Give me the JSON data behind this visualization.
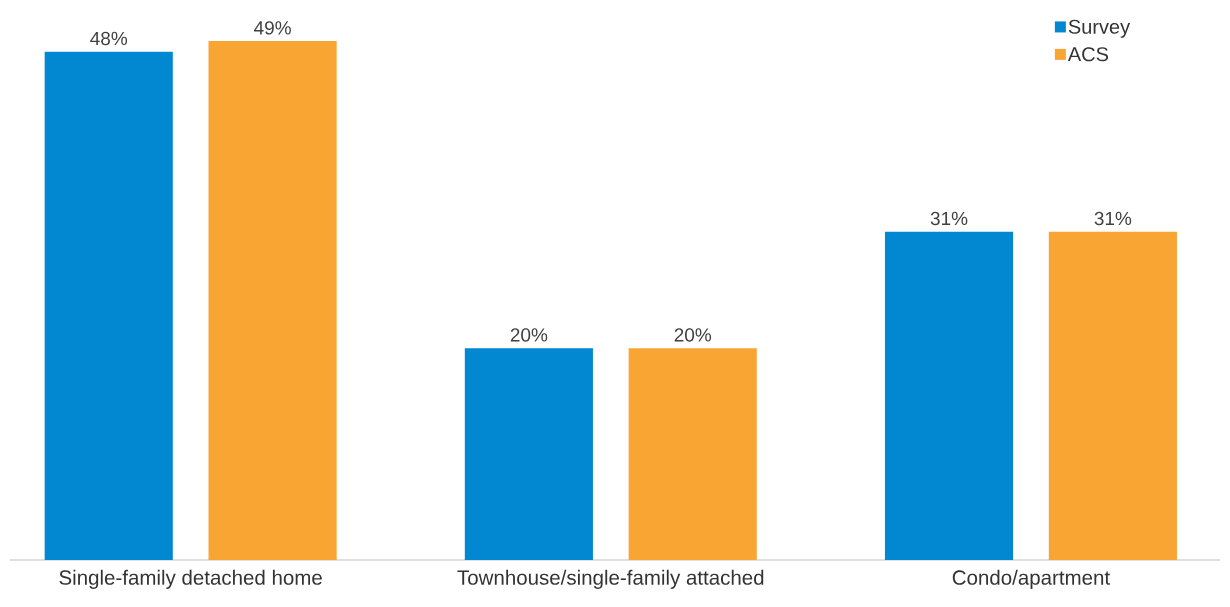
{
  "chart_data": {
    "type": "bar",
    "categories": [
      "Single-family detached home",
      "Townhouse/single-family attached",
      "Condo/apartment"
    ],
    "series": [
      {
        "name": "Survey",
        "color": "#0288d1",
        "values": [
          48,
          20,
          31
        ],
        "value_labels": [
          "48%",
          "20%",
          "31%"
        ]
      },
      {
        "name": "ACS",
        "color": "#f9a533",
        "values": [
          49,
          20,
          31
        ],
        "value_labels": [
          "49%",
          "20%",
          "31%"
        ]
      }
    ],
    "legend": "top right"
  }
}
